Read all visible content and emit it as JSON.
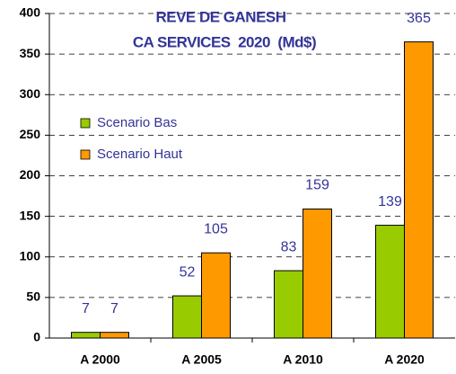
{
  "chart_data": {
    "type": "bar",
    "title": "REVE DE GANESH",
    "subtitle": "CA SERVICES  2020  (Md$)",
    "categories": [
      "A 2000",
      "A 2005",
      "A 2010",
      "A 2020"
    ],
    "series": [
      {
        "name": "Scenario Bas",
        "color": "#99cc00",
        "values": [
          7,
          52,
          83,
          139
        ]
      },
      {
        "name": "Scenario Haut",
        "color": "#ff9900",
        "values": [
          7,
          105,
          159,
          365
        ]
      }
    ],
    "ylim": [
      0,
      400
    ],
    "yticks": [
      0,
      50,
      100,
      150,
      200,
      250,
      300,
      350,
      400
    ],
    "grid": true,
    "legend": "left"
  }
}
